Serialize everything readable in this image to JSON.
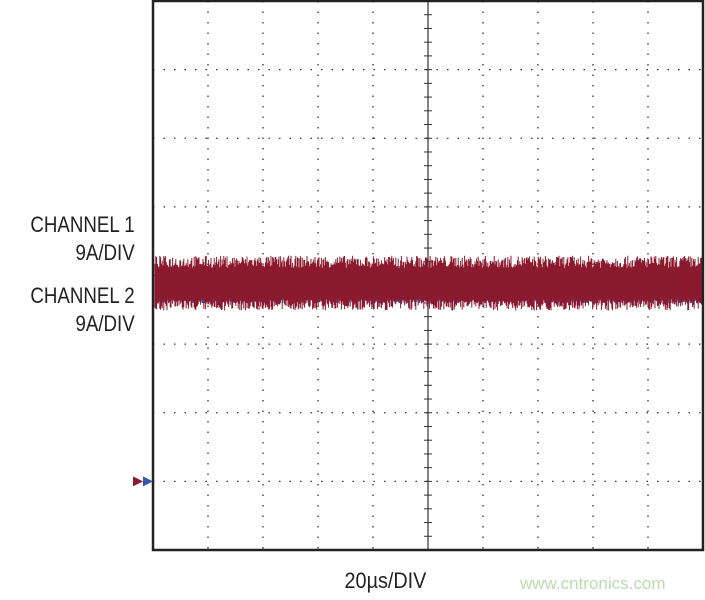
{
  "chart_data": {
    "type": "line",
    "title": "",
    "xlabel": "20µs/DIV",
    "x_divisions": 10,
    "y_divisions": 8,
    "grid": true,
    "ground_division_from_bottom": 1,
    "series": [
      {
        "name": "CHANNEL 1",
        "scale": "9A/DIV",
        "level_A": 26,
        "noise_pp_A": 2.5,
        "color": "#8b1a2e"
      },
      {
        "name": "CHANNEL 2",
        "scale": "9A/DIV",
        "level_A": 24.5,
        "noise_pp_A": 0.8,
        "color": "#3a56a8"
      }
    ]
  },
  "watermark": "www.cntronics.com"
}
